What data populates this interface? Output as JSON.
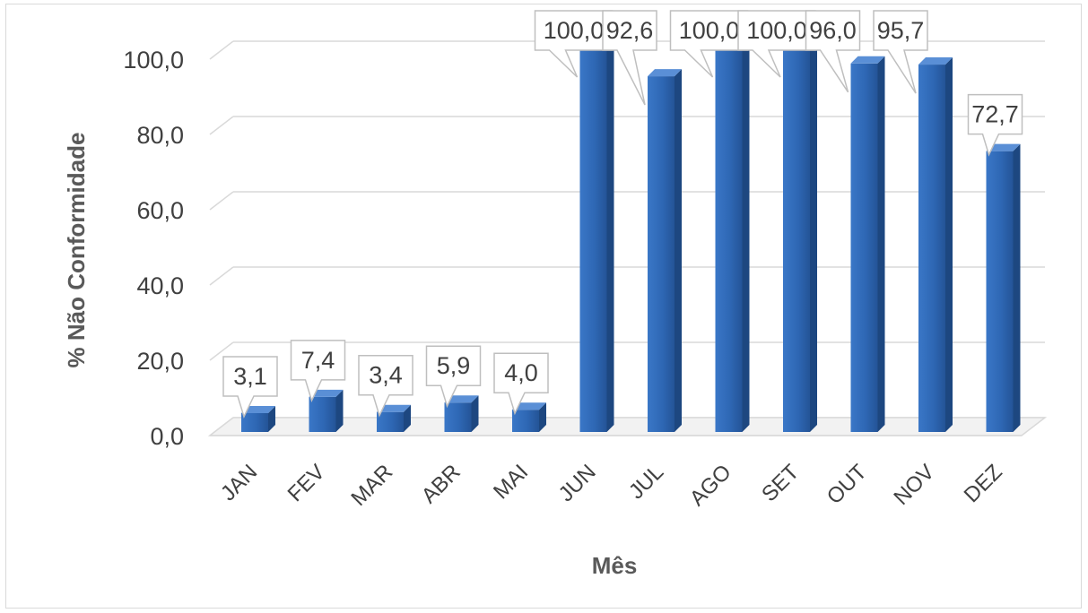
{
  "chart_data": {
    "type": "bar",
    "title": "",
    "xlabel": "Mês",
    "ylabel": "% Não Conformidade",
    "categories": [
      "JAN",
      "FEV",
      "MAR",
      "ABR",
      "MAI",
      "JUN",
      "JUL",
      "AGO",
      "SET",
      "OUT",
      "NOV",
      "DEZ"
    ],
    "values": [
      3.1,
      7.4,
      3.4,
      5.9,
      4.0,
      100.0,
      92.6,
      100.0,
      100.0,
      96.0,
      95.7,
      72.7
    ],
    "data_labels": [
      "3,1",
      "7,4",
      "3,4",
      "5,9",
      "4,0",
      "100,0",
      "92,6",
      "100,0",
      "100,0",
      "96,0",
      "95,7",
      "72,7"
    ],
    "y_ticks": [
      "0,0",
      "20,0",
      "40,0",
      "60,0",
      "80,0",
      "100,0"
    ],
    "ylim": [
      0,
      100
    ],
    "grid": true,
    "legend": "none",
    "bar_color": "#2e67b4"
  }
}
